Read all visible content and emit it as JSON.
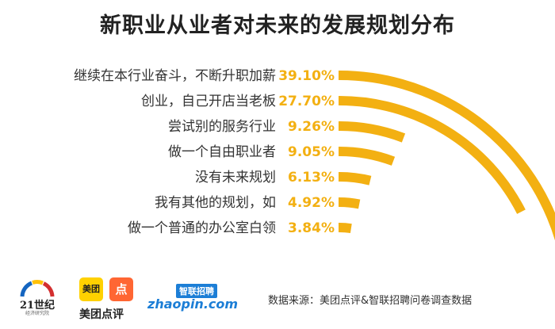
{
  "chart_data": {
    "type": "bar",
    "title": "新职业从业者对未来的发展规划分布",
    "categories": [
      "继续在本行业奋斗，不断升职加薪",
      "创业，自己开店当老板",
      "尝试别的服务行业",
      "做一个自由职业者",
      "没有未来规划",
      "我有其他的规划，如",
      "做一个普通的办公室白领"
    ],
    "values": [
      39.1,
      27.7,
      9.26,
      9.05,
      6.13,
      4.92,
      3.84
    ],
    "value_labels": [
      "39.10%",
      "27.70%",
      "9.26%",
      "9.05%",
      "6.13%",
      "4.92%",
      "3.84%"
    ],
    "unit": "%",
    "color": "#F3B012"
  },
  "footer": {
    "logo_21_line1": "21世纪",
    "logo_21_line2": "经济研究院",
    "meituan_box": "美团",
    "dianping_box": "点",
    "meituan_text": "美团点评",
    "zhaopin_cn": "智联招聘",
    "zhaopin_en": "zhaopin.com",
    "source": "数据来源：美团点评&智联招聘问卷调查数据"
  }
}
